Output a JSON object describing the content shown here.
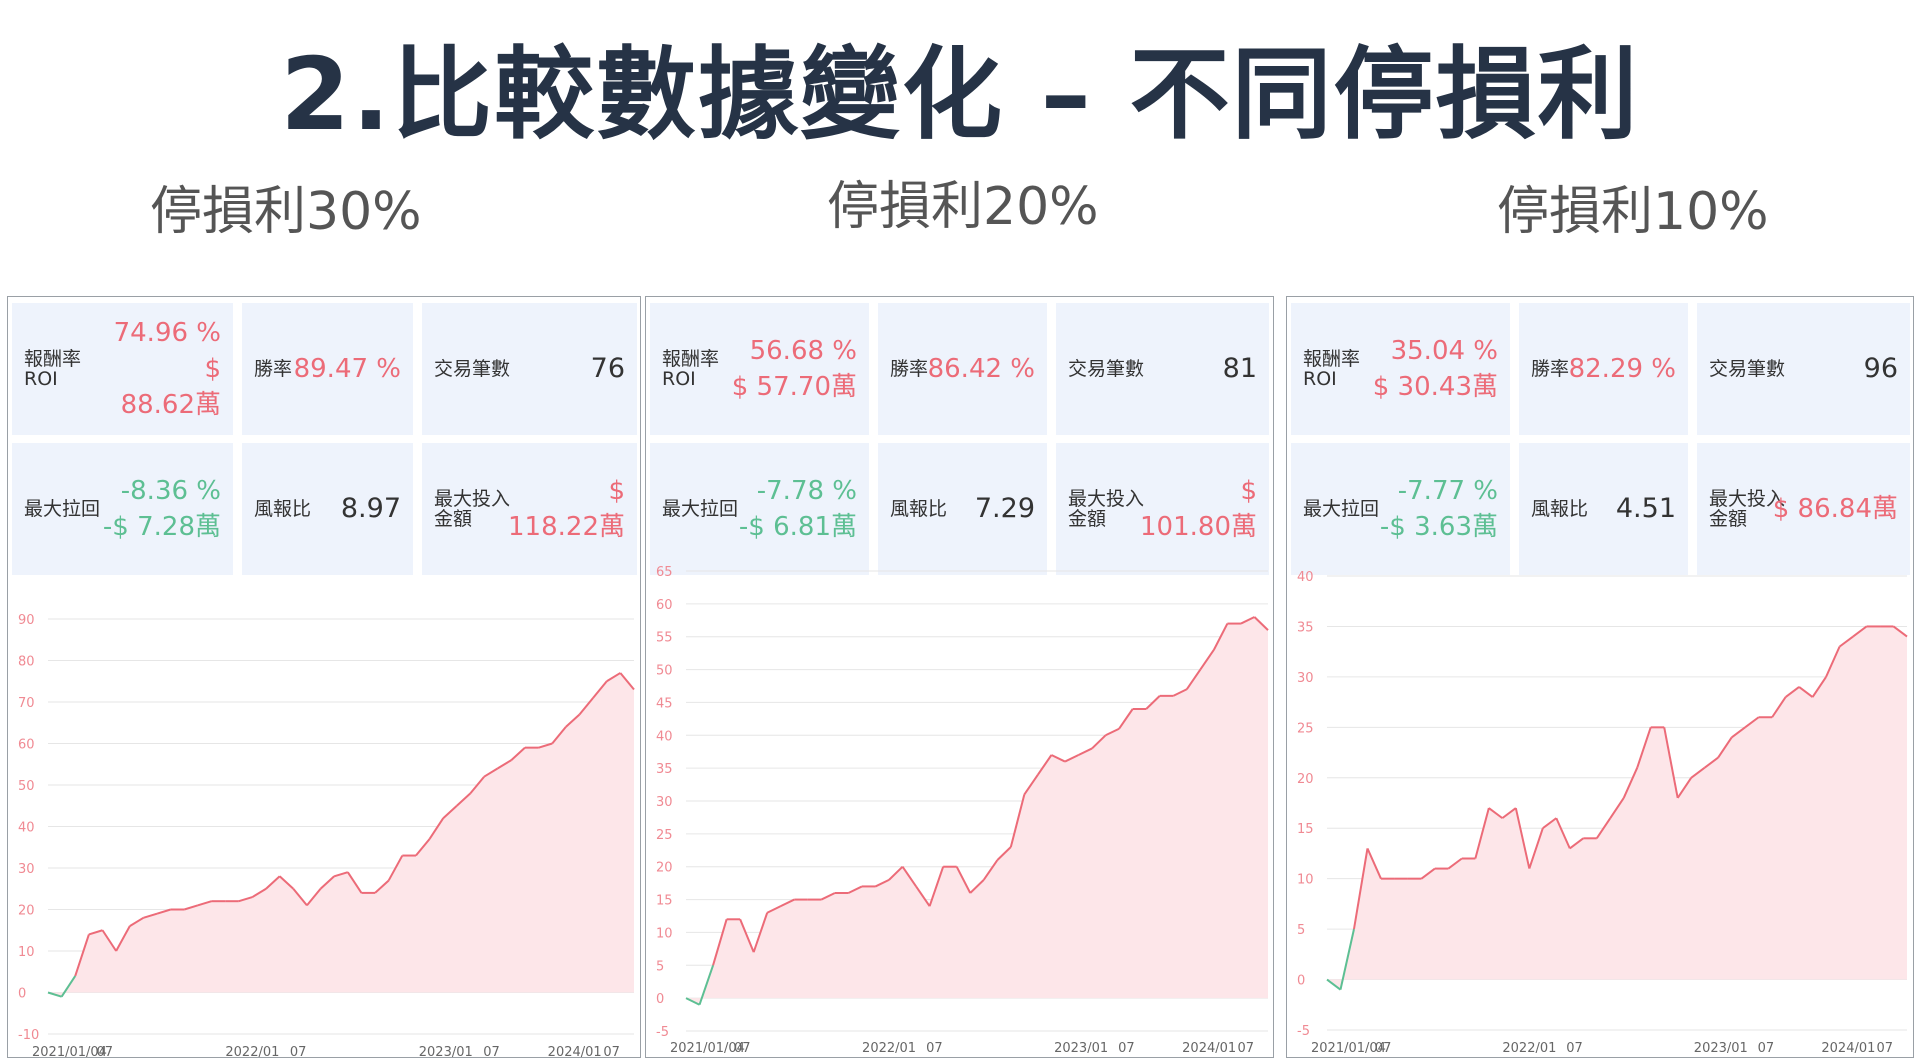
{
  "title": "2.比較數據變化 – 不同停損利",
  "label_texts": {
    "roi": "報酬率\nROI",
    "win_rate": "勝率",
    "trades": "交易筆數",
    "max_drawdown": "最大拉回",
    "risk_reward": "風報比",
    "max_invest": "最大投入\n金額"
  },
  "colors": {
    "positive": "#ec6b78",
    "negative": "#5dbf93",
    "title": "#263346",
    "card": "#eef3fc",
    "fill": "#fde6e9"
  },
  "panels": [
    {
      "subtitle": "停損利30%",
      "roi_pct": "74.96 %",
      "roi_amt": "$\n88.62萬",
      "win_rate": "89.47 %",
      "trades": "76",
      "max_dd_pct": "-8.36 %",
      "max_dd_amt": "-$ 7.28萬",
      "risk_reward": "8.97",
      "max_invest": "$\n118.22萬"
    },
    {
      "subtitle": "停損利20%",
      "roi_pct": "56.68 %",
      "roi_amt": "$ 57.70萬",
      "win_rate": "86.42 %",
      "trades": "81",
      "max_dd_pct": "-7.78 %",
      "max_dd_amt": "-$ 6.81萬",
      "risk_reward": "7.29",
      "max_invest": "$\n101.80萬"
    },
    {
      "subtitle": "停損利10%",
      "roi_pct": "35.04 %",
      "roi_amt": "$ 30.43萬",
      "win_rate": "82.29 %",
      "trades": "96",
      "max_dd_pct": "-7.77 %",
      "max_dd_amt": "-$ 3.63萬",
      "risk_reward": "4.51",
      "max_invest": "$ 86.84萬"
    }
  ],
  "chart_data": [
    {
      "type": "area",
      "title": "停損利30%",
      "x_labels": [
        "2021/01/04",
        "07",
        "2022/01",
        "07",
        "2023/01",
        "07",
        "2024/01",
        "07"
      ],
      "y_ticks": [
        -10,
        0,
        10,
        20,
        30,
        40,
        50,
        60,
        70,
        80,
        90
      ],
      "ylim": [
        -10,
        90
      ],
      "x": [
        "2021-01",
        "2021-02",
        "2021-03",
        "2021-04",
        "2021-05",
        "2021-06",
        "2021-07",
        "2021-08",
        "2021-09",
        "2021-10",
        "2021-11",
        "2021-12",
        "2022-01",
        "2022-02",
        "2022-03",
        "2022-04",
        "2022-05",
        "2022-06",
        "2022-07",
        "2022-08",
        "2022-09",
        "2022-10",
        "2022-11",
        "2022-12",
        "2023-01",
        "2023-02",
        "2023-03",
        "2023-04",
        "2023-05",
        "2023-06",
        "2023-07",
        "2023-08",
        "2023-09",
        "2023-10",
        "2023-11",
        "2023-12",
        "2024-01",
        "2024-02",
        "2024-03",
        "2024-04",
        "2024-05",
        "2024-06",
        "2024-07",
        "2024-08"
      ],
      "values": [
        0,
        -1,
        4,
        14,
        15,
        10,
        16,
        18,
        19,
        20,
        20,
        21,
        22,
        22,
        22,
        23,
        25,
        28,
        25,
        21,
        25,
        28,
        29,
        24,
        24,
        27,
        33,
        33,
        37,
        42,
        45,
        48,
        52,
        54,
        56,
        59,
        59,
        60,
        64,
        67,
        71,
        75,
        77,
        73
      ]
    },
    {
      "type": "area",
      "title": "停損利20%",
      "x_labels": [
        "2021/01/04",
        "07",
        "2022/01",
        "07",
        "2023/01",
        "07",
        "2024/01",
        "07"
      ],
      "y_ticks": [
        -5,
        0,
        5,
        10,
        15,
        20,
        25,
        30,
        35,
        40,
        45,
        50,
        55,
        60,
        65
      ],
      "ylim": [
        -5,
        65
      ],
      "x": [
        "2021-01",
        "2021-02",
        "2021-03",
        "2021-04",
        "2021-05",
        "2021-06",
        "2021-07",
        "2021-08",
        "2021-09",
        "2021-10",
        "2021-11",
        "2021-12",
        "2022-01",
        "2022-02",
        "2022-03",
        "2022-04",
        "2022-05",
        "2022-06",
        "2022-07",
        "2022-08",
        "2022-09",
        "2022-10",
        "2022-11",
        "2022-12",
        "2023-01",
        "2023-02",
        "2023-03",
        "2023-04",
        "2023-05",
        "2023-06",
        "2023-07",
        "2023-08",
        "2023-09",
        "2023-10",
        "2023-11",
        "2023-12",
        "2024-01",
        "2024-02",
        "2024-03",
        "2024-04",
        "2024-05",
        "2024-06",
        "2024-07",
        "2024-08"
      ],
      "values": [
        0,
        -1,
        5,
        12,
        12,
        7,
        13,
        14,
        15,
        15,
        15,
        16,
        16,
        17,
        17,
        18,
        20,
        17,
        14,
        20,
        20,
        16,
        18,
        21,
        23,
        31,
        34,
        37,
        36,
        37,
        38,
        40,
        41,
        44,
        44,
        46,
        46,
        47,
        50,
        53,
        57,
        57,
        58,
        56
      ]
    },
    {
      "type": "area",
      "title": "停損利10%",
      "x_labels": [
        "2021/01/04",
        "07",
        "2022/01",
        "07",
        "2023/01",
        "07",
        "2024/01",
        "07"
      ],
      "y_ticks": [
        -5,
        0,
        5,
        10,
        15,
        20,
        25,
        30,
        35,
        40
      ],
      "ylim": [
        -5,
        40
      ],
      "x": [
        "2021-01",
        "2021-02",
        "2021-03",
        "2021-04",
        "2021-05",
        "2021-06",
        "2021-07",
        "2021-08",
        "2021-09",
        "2021-10",
        "2021-11",
        "2021-12",
        "2022-01",
        "2022-02",
        "2022-03",
        "2022-04",
        "2022-05",
        "2022-06",
        "2022-07",
        "2022-08",
        "2022-09",
        "2022-10",
        "2022-11",
        "2022-12",
        "2023-01",
        "2023-02",
        "2023-03",
        "2023-04",
        "2023-05",
        "2023-06",
        "2023-07",
        "2023-08",
        "2023-09",
        "2023-10",
        "2023-11",
        "2023-12",
        "2024-01",
        "2024-02",
        "2024-03",
        "2024-04",
        "2024-05",
        "2024-06",
        "2024-07",
        "2024-08"
      ],
      "values": [
        0,
        -1,
        5,
        13,
        10,
        10,
        10,
        10,
        11,
        11,
        12,
        12,
        17,
        16,
        17,
        11,
        15,
        16,
        13,
        14,
        14,
        16,
        18,
        21,
        25,
        25,
        18,
        20,
        21,
        22,
        24,
        25,
        26,
        26,
        28,
        29,
        28,
        30,
        33,
        34,
        35,
        35,
        35,
        34
      ]
    }
  ]
}
